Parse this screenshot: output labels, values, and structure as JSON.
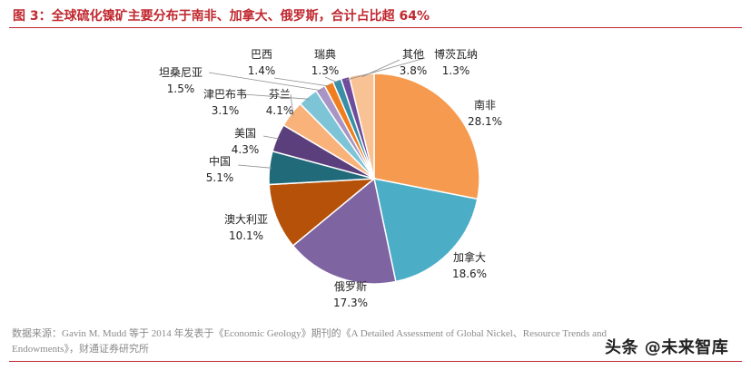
{
  "header": {
    "title": "图 3：全球硫化镍矿主要分布于南非、加拿大、俄罗斯，合计占比超 64%"
  },
  "footer": {
    "source": "数据来源：Gavin M. Mudd 等于 2014 年发表于《Economic Geology》期刊的《A Detailed Assessment of Global Nickel、Resource Trends and Endowments》，财通证券研究所",
    "watermark": "头条 @未来智库"
  },
  "chart_data": {
    "type": "pie",
    "slices": [
      {
        "name": "南非",
        "value": 28.1,
        "label": "28.1%",
        "color": "#f59a4f"
      },
      {
        "name": "加拿大",
        "value": 18.6,
        "label": "18.6%",
        "color": "#4badc6"
      },
      {
        "name": "俄罗斯",
        "value": 17.3,
        "label": "17.3%",
        "color": "#7f64a2"
      },
      {
        "name": "澳大利亚",
        "value": 10.1,
        "label": "10.1%",
        "color": "#b65109"
      },
      {
        "name": "中国",
        "value": 5.1,
        "label": "5.1%",
        "color": "#216a7a"
      },
      {
        "name": "美国",
        "value": 4.3,
        "label": "4.3%",
        "color": "#5b3f7c"
      },
      {
        "name": "芬兰",
        "value": 4.1,
        "label": "4.1%",
        "color": "#f8b27a"
      },
      {
        "name": "津巴布韦",
        "value": 3.1,
        "label": "3.1%",
        "color": "#7ec4d7"
      },
      {
        "name": "坦桑尼亚",
        "value": 1.5,
        "label": "1.5%",
        "color": "#a995c5"
      },
      {
        "name": "巴西",
        "value": 1.4,
        "label": "1.4%",
        "color": "#f07e1f"
      },
      {
        "name": "瑞典",
        "value": 1.3,
        "label": "1.3%",
        "color": "#3a8fa6"
      },
      {
        "name": "博茨瓦纳",
        "value": 1.3,
        "label": "1.3%",
        "color": "#6f4c9b"
      },
      {
        "name": "其他",
        "value": 3.8,
        "label": "3.8%",
        "color": "#f9c295"
      }
    ]
  }
}
